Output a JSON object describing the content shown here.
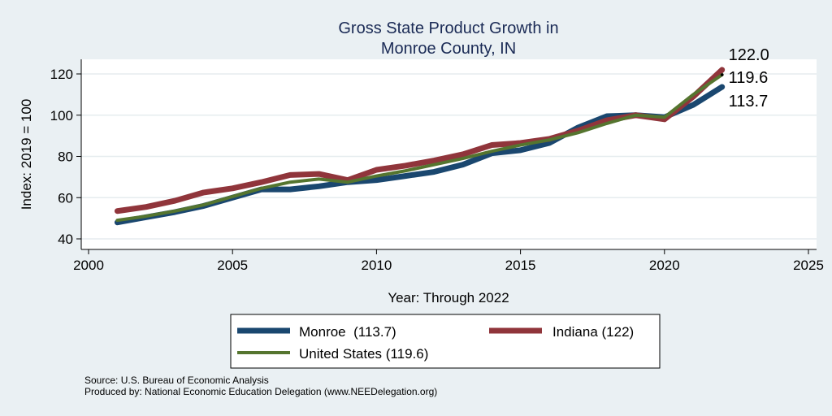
{
  "chart_data": {
    "type": "line",
    "title": [
      "Gross State Product Growth in",
      "Monroe County, IN"
    ],
    "xlabel": "Year: Through 2022",
    "ylabel": "Index: 2019 = 100",
    "xlim": [
      2000,
      2025
    ],
    "ylim": [
      37,
      126
    ],
    "xticks": [
      2000,
      2005,
      2010,
      2015,
      2020,
      2025
    ],
    "yticks": [
      40,
      60,
      80,
      100,
      120
    ],
    "grid": true,
    "legend_position": "bottom",
    "x": [
      2001,
      2002,
      2003,
      2004,
      2005,
      2006,
      2007,
      2008,
      2009,
      2010,
      2011,
      2012,
      2013,
      2014,
      2015,
      2016,
      2017,
      2018,
      2019,
      2020,
      2021,
      2022
    ],
    "series": [
      {
        "name": "Monroe  (113.7)",
        "color": "#1a476f",
        "width": 7,
        "values": [
          48,
          50.5,
          53,
          56,
          60,
          64,
          64,
          65.5,
          67.5,
          68.5,
          70.5,
          72.5,
          76,
          81.5,
          83,
          86.5,
          94,
          99.5,
          100,
          99,
          105,
          113.7
        ],
        "end_label": "113.7"
      },
      {
        "name": "Indiana (122)",
        "color": "#90353b",
        "width": 7,
        "values": [
          53.5,
          55.5,
          58.5,
          62.5,
          64.5,
          67.5,
          71,
          71.5,
          68.5,
          73.5,
          75.5,
          78,
          81,
          85.5,
          86.5,
          88.5,
          92.5,
          97.5,
          100,
          98,
          109,
          122
        ],
        "end_label": "122.0"
      },
      {
        "name": "United States (119.6)",
        "color": "#55752f",
        "width": 4,
        "values": [
          49,
          51,
          53.5,
          56.5,
          60.5,
          64.5,
          67.5,
          69,
          67.5,
          70.5,
          73,
          76,
          79,
          82.5,
          85.5,
          88,
          91.5,
          96,
          100,
          99,
          110,
          119.6
        ],
        "end_label": "119.6"
      }
    ]
  },
  "footer": {
    "source": "Source: U.S. Bureau of Economic Analysis",
    "produced": "Produced by: National Economic Education Delegation (www.NEEDelegation.org)"
  }
}
